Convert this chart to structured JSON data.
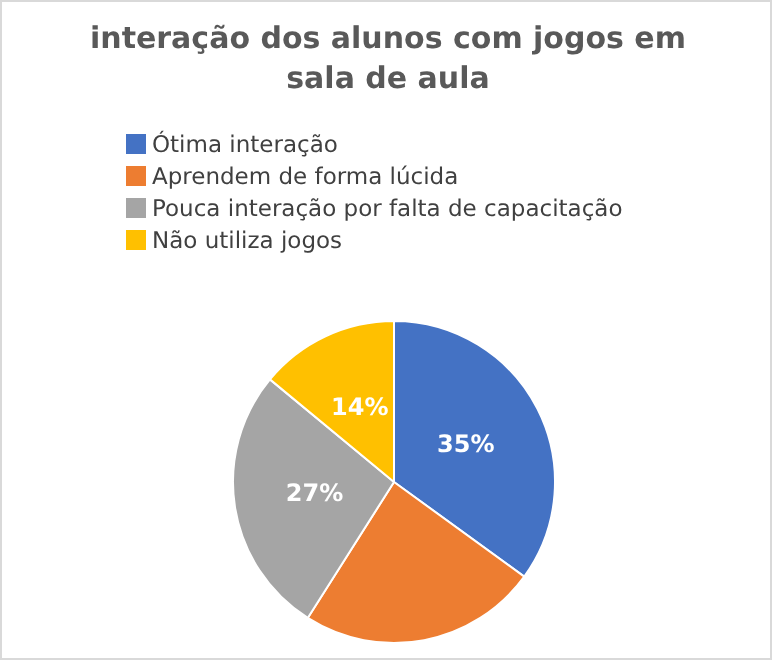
{
  "chart_data": {
    "type": "pie",
    "title": "interação dos alunos com jogos em sala de aula",
    "categories": [
      "Ótima interação",
      "Aprendem de forma lúcida",
      "Pouca interação por falta de capacitação",
      "Não utiliza jogos"
    ],
    "values": [
      35,
      24,
      27,
      14
    ],
    "colors": [
      "#4472c4",
      "#ed7d31",
      "#a5a5a5",
      "#ffc000"
    ],
    "value_labels": [
      "35%",
      null,
      "27%",
      "14%"
    ],
    "legend": "top"
  }
}
